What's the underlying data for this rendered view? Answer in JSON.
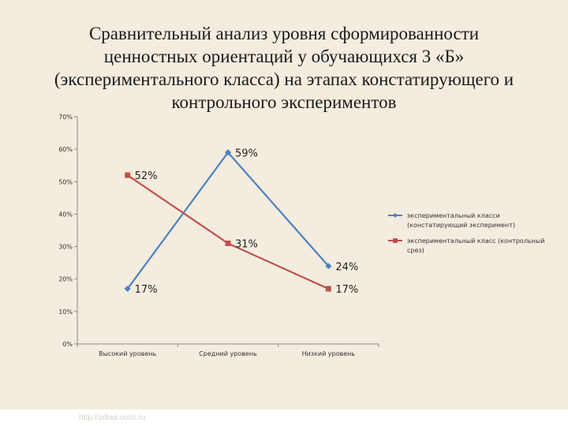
{
  "slide": {
    "title_lines": [
      "Сравнительный анализ уровня сформированности",
      "ценностных ориентаций у обучающихся 3 «Б»",
      "(экспериментального класса) на этапах констатирующего и",
      "контрольного экспериментов"
    ],
    "watermark": "http://zdiaa.ucoz.ru"
  },
  "chart_data": {
    "type": "line",
    "categories": [
      "Высокий уровень",
      "Средний уровень",
      "Низкий уровень"
    ],
    "y_ticks": [
      "0%",
      "10%",
      "20%",
      "30%",
      "40%",
      "50%",
      "60%",
      "70%"
    ],
    "ylim": [
      0,
      70
    ],
    "grid": false,
    "legend_position": "right",
    "series": [
      {
        "name_lines": [
          "экспериментальный класси",
          "(констатирующий эксперимент)"
        ],
        "values": [
          17,
          59,
          24
        ],
        "labels": [
          "17%",
          "59%",
          "24%"
        ],
        "color": "#4f81bd",
        "marker": "diamond"
      },
      {
        "name_lines": [
          "экспериментальный класс (контрольный",
          "срез)"
        ],
        "values": [
          52,
          31,
          17
        ],
        "labels": [
          "52%",
          "31%",
          "17%"
        ],
        "color": "#c0504d",
        "marker": "square"
      }
    ]
  }
}
